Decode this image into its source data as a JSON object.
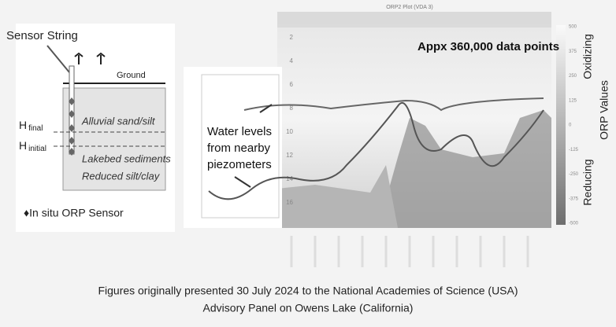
{
  "diagram": {
    "sensor_string": "Sensor String",
    "ground": "Ground",
    "layer_top": "Alluvial sand/silt",
    "h_final": "H",
    "h_final_sub": "final",
    "h_initial": "H",
    "h_initial_sub": "initial",
    "layer_mid": "Lakebed sediments",
    "layer_bottom": "Reduced silt/clay",
    "legend": "♦In situ ORP Sensor"
  },
  "plot": {
    "title": "ORP2 Plot (VDA 3)",
    "annotation": "Appx 360,000 data points",
    "piezometer_note": [
      "Water levels",
      "from nearby",
      "piezometers"
    ],
    "yticks": [
      2,
      4,
      6,
      8,
      10,
      12,
      14,
      16
    ],
    "colorbar_ticks": [
      500,
      375,
      250,
      125,
      0,
      -125,
      -250,
      -375,
      -500
    ]
  },
  "labels": {
    "oxidizing": "Oxidizing",
    "orp_values": "ORP Values",
    "reducing": "Reducing"
  },
  "caption": [
    "Figures originally presented 30 July 2024 to the National Academies of Science (USA)",
    "Advisory Panel on Owens Lake (California)"
  ]
}
